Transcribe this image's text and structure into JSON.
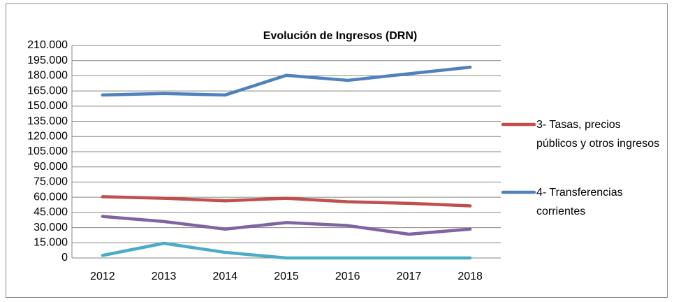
{
  "chart_data": {
    "type": "line",
    "title": "Evolución de Ingresos (DRN)",
    "categories": [
      "2012",
      "2013",
      "2014",
      "2015",
      "2016",
      "2017",
      "2018"
    ],
    "series": [
      {
        "name": "3- Tasas, precios públicos y otros ingresos",
        "color": "#c0504d",
        "values": [
          60500,
          59000,
          56500,
          59000,
          55500,
          54000,
          51500
        ]
      },
      {
        "name": "4- Transferencias corrientes",
        "color": "#4f81bd",
        "values": [
          161000,
          162500,
          161000,
          180500,
          175500,
          182000,
          188500
        ]
      },
      {
        "color": "#8064a2",
        "values": [
          41000,
          36000,
          28500,
          35000,
          32000,
          23500,
          28500
        ]
      },
      {
        "color": "#4bacc6",
        "values": [
          2500,
          14500,
          5500,
          0,
          0,
          0,
          0
        ]
      }
    ],
    "ylim": [
      0,
      210000
    ],
    "yticks": [
      0,
      {
        "value": 15000,
        "label": "15.000"
      },
      {
        "value": 30000,
        "label": "30.000"
      },
      {
        "value": 45000,
        "label": "45.000"
      },
      {
        "value": 60000,
        "label": "60.000"
      },
      {
        "value": 75000,
        "label": "75.000"
      },
      {
        "value": 90000,
        "label": "90.000"
      },
      {
        "value": 105000,
        "label": "105.000"
      },
      {
        "value": 120000,
        "label": "120.000"
      },
      {
        "value": 135000,
        "label": "135.000"
      },
      {
        "value": 150000,
        "label": "150.000"
      },
      {
        "value": 165000,
        "label": "165.000"
      },
      {
        "value": 180000,
        "label": "180.000"
      },
      {
        "value": 195000,
        "label": "195.000"
      },
      {
        "value": 210000,
        "label": "210.000"
      }
    ],
    "grid": true,
    "legend": "right"
  }
}
